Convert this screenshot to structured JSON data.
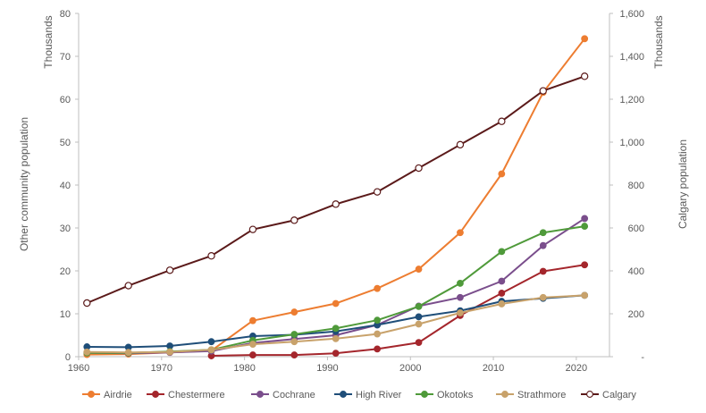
{
  "chart_data": {
    "type": "line",
    "title": "",
    "xlabel": "",
    "ylabel": "Other community population",
    "ylabel_units": "Thousands",
    "y2label": "Calgary population",
    "y2label_units": "Thousands",
    "xlim": [
      1960,
      2024
    ],
    "ylim": [
      0,
      80
    ],
    "y2lim": [
      0,
      1600
    ],
    "x_ticks": [
      "1960",
      "1970",
      "1980",
      "1990",
      "2000",
      "2010",
      "2020"
    ],
    "y_ticks": [
      "0",
      "10",
      "20",
      "30",
      "40",
      "50",
      "60",
      "70",
      "80"
    ],
    "y2_ticks": [
      "-",
      "200",
      "400",
      "600",
      "800",
      "1,000",
      "1,200",
      "1,400",
      "1,600"
    ],
    "grid": false,
    "legend_position": "bottom",
    "series": [
      {
        "name": "Airdrie",
        "axis": "left",
        "color": "#ED7D31",
        "marker": "filled",
        "x": [
          1961,
          1966,
          1971,
          1976,
          1981,
          1986,
          1991,
          1996,
          2001,
          2006,
          2011,
          2016,
          2021
        ],
        "y": [
          0.5,
          0.6,
          1.0,
          1.4,
          8.4,
          10.4,
          12.4,
          15.9,
          20.4,
          28.9,
          42.6,
          61.6,
          74.1
        ]
      },
      {
        "name": "Chestermere",
        "axis": "left",
        "color": "#A4262C",
        "marker": "filled",
        "x": [
          1976,
          1981,
          1986,
          1991,
          1996,
          2001,
          2006,
          2011,
          2016,
          2021
        ],
        "y": [
          0.2,
          0.4,
          0.4,
          0.8,
          1.8,
          3.3,
          9.6,
          14.8,
          19.9,
          21.4
        ]
      },
      {
        "name": "Cochrane",
        "axis": "left",
        "color": "#7A4E8C",
        "marker": "filled",
        "x": [
          1961,
          1966,
          1971,
          1976,
          1981,
          1986,
          1991,
          1996,
          2001,
          2006,
          2011,
          2016,
          2021
        ],
        "y": [
          0.9,
          0.8,
          1.0,
          1.3,
          3.2,
          4.1,
          5.0,
          7.4,
          11.8,
          13.8,
          17.6,
          25.9,
          32.2
        ]
      },
      {
        "name": "High River",
        "axis": "left",
        "color": "#1F4E79",
        "marker": "filled",
        "x": [
          1961,
          1966,
          1971,
          1976,
          1981,
          1986,
          1991,
          1996,
          2001,
          2006,
          2011,
          2016,
          2021
        ],
        "y": [
          2.3,
          2.2,
          2.5,
          3.5,
          4.8,
          5.1,
          5.9,
          7.4,
          9.3,
          10.7,
          12.9,
          13.6,
          14.3
        ]
      },
      {
        "name": "Okotoks",
        "axis": "left",
        "color": "#4F9A3A",
        "marker": "filled",
        "x": [
          1961,
          1966,
          1971,
          1976,
          1981,
          1986,
          1991,
          1996,
          2001,
          2006,
          2011,
          2016,
          2021
        ],
        "y": [
          0.9,
          0.9,
          1.2,
          1.6,
          3.8,
          5.2,
          6.6,
          8.5,
          11.7,
          17.1,
          24.5,
          28.9,
          30.4
        ]
      },
      {
        "name": "Strathmore",
        "axis": "left",
        "color": "#C8A26B",
        "marker": "filled",
        "x": [
          1961,
          1966,
          1971,
          1976,
          1981,
          1986,
          1991,
          1996,
          2001,
          2006,
          2011,
          2016,
          2021
        ],
        "y": [
          1.1,
          1.0,
          1.1,
          1.6,
          2.9,
          3.5,
          4.2,
          5.3,
          7.6,
          10.2,
          12.3,
          13.8,
          14.3
        ]
      },
      {
        "name": "Calgary",
        "axis": "right",
        "color": "#5B1A1A",
        "marker": "hollow",
        "x": [
          1961,
          1966,
          1971,
          1976,
          1981,
          1986,
          1991,
          1996,
          2001,
          2006,
          2011,
          2016,
          2021
        ],
        "y": [
          250,
          331,
          403,
          470,
          593,
          636,
          711,
          768,
          879,
          988,
          1097,
          1239,
          1307
        ]
      }
    ]
  }
}
